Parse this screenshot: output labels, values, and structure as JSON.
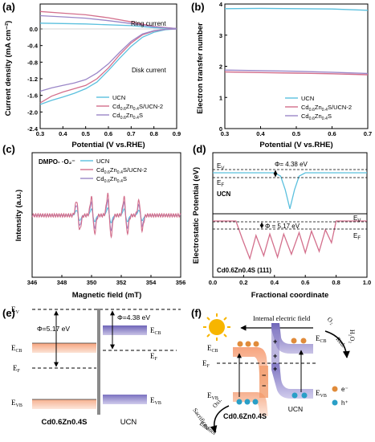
{
  "panels": {
    "a": {
      "label": "(a)",
      "title": "",
      "xlabel": "Potential (V vs.RHE)",
      "ylabel": "Current density (mA cm⁻²)",
      "xlim": [
        0.3,
        0.9
      ],
      "ylim": [
        -2.4,
        0.6
      ],
      "xticks": [
        "0.3",
        "0.4",
        "0.5",
        "0.6",
        "0.7",
        "0.8",
        "0.9"
      ],
      "yticks": [
        "0.0",
        "-0.4",
        "-0.8",
        "-1.2",
        "-1.6",
        "-2.0",
        "-2.4"
      ],
      "annotations": {
        "ring": "Ring current",
        "disk": "Disk current"
      },
      "legend": [
        "UCN",
        "Cd0.6Zn0.4S/UCN-2",
        "Cd0.6Zn0.4S"
      ]
    },
    "b": {
      "label": "(b)",
      "xlabel": "Potential (V vs.RHE)",
      "ylabel": "Electron transfer number",
      "xlim": [
        0.3,
        0.7
      ],
      "ylim": [
        0,
        4
      ],
      "xticks": [
        "0.3",
        "0.4",
        "0.5",
        "0.6",
        "0.7"
      ],
      "yticks": [
        "0",
        "1",
        "2",
        "3",
        "4"
      ],
      "legend": [
        "UCN",
        "Cd0.6Zn0.4S/UCN-2",
        "Cd0.6Zn0.4S"
      ]
    },
    "c": {
      "label": "(c)",
      "xlabel": "Magnetic field (mT)",
      "ylabel": "Intensity (a.u.)",
      "xlim": [
        346,
        356
      ],
      "xticks": [
        "346",
        "348",
        "350",
        "352",
        "354",
        "356"
      ],
      "annotation": "DMPO- ·O₂⁻",
      "legend": [
        "UCN",
        "Cd0.6Zn0.4S/UCN-2",
        "Cd0.6Zn0.4S"
      ]
    },
    "d": {
      "label": "(d)",
      "xlabel": "Fractional coordinate",
      "ylabel": "Electrostatic Potential (eV)",
      "xlim": [
        0.0,
        1.0
      ],
      "xticks": [
        "0.0",
        "0.2",
        "0.4",
        "0.6",
        "0.8",
        "1.0"
      ],
      "top": {
        "name": "UCN",
        "phi": "Φ= 4.38 eV",
        "ev": "E",
        "ev_sub": "V",
        "ef": "E",
        "ef_sub": "F"
      },
      "bottom": {
        "name": "Cd0.6Zn0.4S (111)",
        "phi": "Φ = 5.17 eV",
        "ev": "E",
        "ev_sub": "V",
        "ef": "E",
        "ef_sub": "F"
      }
    },
    "e": {
      "label": "(e)",
      "phi_left": "Φ=5.17 eV",
      "phi_right": "Φ=4.38 eV",
      "ev": "E",
      "ev_sub": "V",
      "ecb": "E",
      "ecb_sub": "CB",
      "ef": "E",
      "ef_sub": "F",
      "evb": "E",
      "evb_sub": "VB",
      "left_name": "Cd0.6Zn0.4S",
      "right_name": "UCN"
    },
    "f": {
      "label": "(f)",
      "title": "Internal electric field",
      "ecb": "E",
      "ecb_sub": "CB",
      "ef": "E",
      "ef_sub": "F",
      "evb": "E",
      "evb_sub": "VB",
      "o2": "O₂",
      "red": "Red.",
      "h2o2": "H₂O₂",
      "oxi": "Oxi.",
      "sacrificed": "Sacrificed",
      "ethanol": "Ethanol",
      "left_name": "Cd0.6Zn0.4S",
      "right_name": "UCN",
      "electron": "e⁻",
      "hole": "h⁺"
    }
  },
  "colors": {
    "ucn": "#5bc0de",
    "cdzns_ucn": "#d36f8c",
    "cdzns": "#9b87c8",
    "cb_left": "#f5b79a",
    "cb_right": "#8f86c9",
    "electron": "#e08b3a",
    "hole": "#2a9fc7",
    "sun": "#f7b500"
  },
  "chart_data": [
    {
      "panel": "a",
      "type": "line",
      "xlabel": "Potential (V vs.RHE)",
      "ylabel": "Current density (mA cm⁻²)",
      "xlim": [
        0.3,
        0.9
      ],
      "ylim": [
        -2.4,
        0.6
      ],
      "series": [
        {
          "name": "UCN",
          "color": "#5bc0de",
          "ring": [
            [
              0.3,
              0.14
            ],
            [
              0.5,
              0.12
            ],
            [
              0.7,
              0.08
            ],
            [
              0.8,
              0.03
            ],
            [
              0.9,
              0.01
            ]
          ],
          "disk": [
            [
              0.3,
              -1.82
            ],
            [
              0.35,
              -1.72
            ],
            [
              0.4,
              -1.64
            ],
            [
              0.45,
              -1.55
            ],
            [
              0.5,
              -1.44
            ],
            [
              0.55,
              -1.28
            ],
            [
              0.6,
              -1.0
            ],
            [
              0.65,
              -0.7
            ],
            [
              0.7,
              -0.42
            ],
            [
              0.75,
              -0.2
            ],
            [
              0.8,
              -0.08
            ],
            [
              0.85,
              -0.02
            ],
            [
              0.9,
              0.0
            ]
          ]
        },
        {
          "name": "Cd0.6Zn0.4S/UCN-2",
          "color": "#d36f8c",
          "ring": [
            [
              0.3,
              0.42
            ],
            [
              0.4,
              0.38
            ],
            [
              0.5,
              0.34
            ],
            [
              0.6,
              0.27
            ],
            [
              0.7,
              0.17
            ],
            [
              0.8,
              0.06
            ],
            [
              0.9,
              0.01
            ]
          ],
          "disk": [
            [
              0.3,
              -1.78
            ],
            [
              0.35,
              -1.62
            ],
            [
              0.4,
              -1.52
            ],
            [
              0.45,
              -1.44
            ],
            [
              0.5,
              -1.36
            ],
            [
              0.55,
              -1.2
            ],
            [
              0.6,
              -0.94
            ],
            [
              0.65,
              -0.62
            ],
            [
              0.7,
              -0.34
            ],
            [
              0.75,
              -0.14
            ],
            [
              0.8,
              -0.05
            ],
            [
              0.85,
              -0.01
            ],
            [
              0.9,
              0.0
            ]
          ]
        },
        {
          "name": "Cd0.6Zn0.4S",
          "color": "#9b87c8",
          "ring": [
            [
              0.3,
              0.32
            ],
            [
              0.4,
              0.29
            ],
            [
              0.5,
              0.26
            ],
            [
              0.6,
              0.2
            ],
            [
              0.7,
              0.13
            ],
            [
              0.8,
              0.05
            ],
            [
              0.9,
              0.01
            ]
          ],
          "disk": [
            [
              0.3,
              -1.5
            ],
            [
              0.35,
              -1.42
            ],
            [
              0.4,
              -1.36
            ],
            [
              0.45,
              -1.3
            ],
            [
              0.5,
              -1.22
            ],
            [
              0.55,
              -1.06
            ],
            [
              0.6,
              -0.84
            ],
            [
              0.65,
              -0.56
            ],
            [
              0.7,
              -0.3
            ],
            [
              0.75,
              -0.12
            ],
            [
              0.8,
              -0.04
            ],
            [
              0.85,
              -0.01
            ],
            [
              0.9,
              0.0
            ]
          ]
        }
      ]
    },
    {
      "panel": "b",
      "type": "line",
      "xlabel": "Potential (V vs.RHE)",
      "ylabel": "Electron transfer number",
      "xlim": [
        0.3,
        0.7
      ],
      "ylim": [
        0,
        4
      ],
      "series": [
        {
          "name": "UCN",
          "color": "#5bc0de",
          "points": [
            [
              0.3,
              3.85
            ],
            [
              0.4,
              3.86
            ],
            [
              0.5,
              3.85
            ],
            [
              0.6,
              3.84
            ],
            [
              0.7,
              3.8
            ]
          ]
        },
        {
          "name": "Cd0.6Zn0.4S/UCN-2",
          "color": "#d36f8c",
          "points": [
            [
              0.3,
              1.82
            ],
            [
              0.4,
              1.8
            ],
            [
              0.5,
              1.78
            ],
            [
              0.6,
              1.76
            ],
            [
              0.7,
              1.73
            ]
          ]
        },
        {
          "name": "Cd0.6Zn0.4S",
          "color": "#9b87c8",
          "points": [
            [
              0.3,
              1.88
            ],
            [
              0.4,
              1.86
            ],
            [
              0.5,
              1.84
            ],
            [
              0.6,
              1.81
            ],
            [
              0.7,
              1.77
            ]
          ]
        }
      ]
    },
    {
      "panel": "c",
      "type": "line",
      "xlabel": "Magnetic field (mT)",
      "ylabel": "Intensity (a.u.)",
      "xlim": [
        346,
        356
      ],
      "peaks": [
        349.1,
        350.1,
        351.2,
        352.3,
        353.3
      ],
      "series": [
        {
          "name": "UCN",
          "color": "#5bc0de",
          "amplitude": 0.35
        },
        {
          "name": "Cd0.6Zn0.4S/UCN-2",
          "color": "#d36f8c",
          "amplitude": 1.0
        },
        {
          "name": "Cd0.6Zn0.4S",
          "color": "#9b87c8",
          "amplitude": 0.7
        }
      ]
    },
    {
      "panel": "d",
      "type": "line",
      "xlabel": "Fractional coordinate",
      "ylabel": "Electrostatic Potential (eV)",
      "xlim": [
        0.0,
        1.0
      ],
      "series": [
        {
          "name": "UCN",
          "color": "#5bc0de",
          "points": [
            [
              0.0,
              0.0
            ],
            [
              0.4,
              0.0
            ],
            [
              0.44,
              -0.3
            ],
            [
              0.47,
              -1.5
            ],
            [
              0.5,
              -3.2
            ],
            [
              0.53,
              -1.5
            ],
            [
              0.56,
              -0.3
            ],
            [
              0.6,
              0.0
            ],
            [
              1.0,
              0.0
            ]
          ]
        },
        {
          "name": "Cd0.6Zn0.4S (111)",
          "color": "#d36f8c",
          "points": [
            [
              0.0,
              0.0
            ],
            [
              0.15,
              0.0
            ],
            [
              0.19,
              -1.2
            ],
            [
              0.24,
              -2.6
            ],
            [
              0.28,
              -1.0
            ],
            [
              0.33,
              -2.4
            ],
            [
              0.37,
              -0.9
            ],
            [
              0.42,
              -2.5
            ],
            [
              0.46,
              -0.9
            ],
            [
              0.51,
              -2.3
            ],
            [
              0.56,
              -0.8
            ],
            [
              0.6,
              -2.2
            ],
            [
              0.64,
              -0.7
            ],
            [
              0.69,
              -2.1
            ],
            [
              0.73,
              -0.6
            ],
            [
              0.77,
              -1.5
            ],
            [
              0.8,
              0.0
            ],
            [
              1.0,
              0.0
            ]
          ]
        }
      ]
    }
  ]
}
